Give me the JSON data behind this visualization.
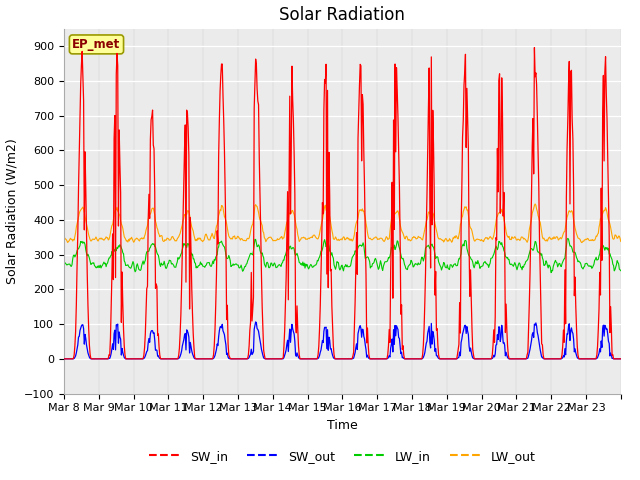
{
  "title": "Solar Radiation",
  "xlabel": "Time",
  "ylabel": "Solar Radiation (W/m2)",
  "ylim": [
    -100,
    950
  ],
  "yticks": [
    -100,
    0,
    100,
    200,
    300,
    400,
    500,
    600,
    700,
    800,
    900
  ],
  "date_labels": [
    "Mar 8",
    "Mar 9",
    "Mar 10",
    "Mar 11",
    "Mar 12",
    "Mar 13",
    "Mar 14",
    "Mar 15",
    "Mar 16",
    "Mar 17",
    "Mar 18",
    "Mar 19",
    "Mar 20",
    "Mar 21",
    "Mar 22",
    "Mar 23"
  ],
  "n_days": 16,
  "legend_label_box": "EP_met",
  "series_colors": {
    "SW_in": "#ff0000",
    "SW_out": "#0000ff",
    "LW_in": "#00cc00",
    "LW_out": "#ffa500"
  },
  "background_color": "#ebebeb",
  "grid_color": "#ffffff",
  "title_fontsize": 12,
  "axis_fontsize": 9,
  "tick_fontsize": 8
}
